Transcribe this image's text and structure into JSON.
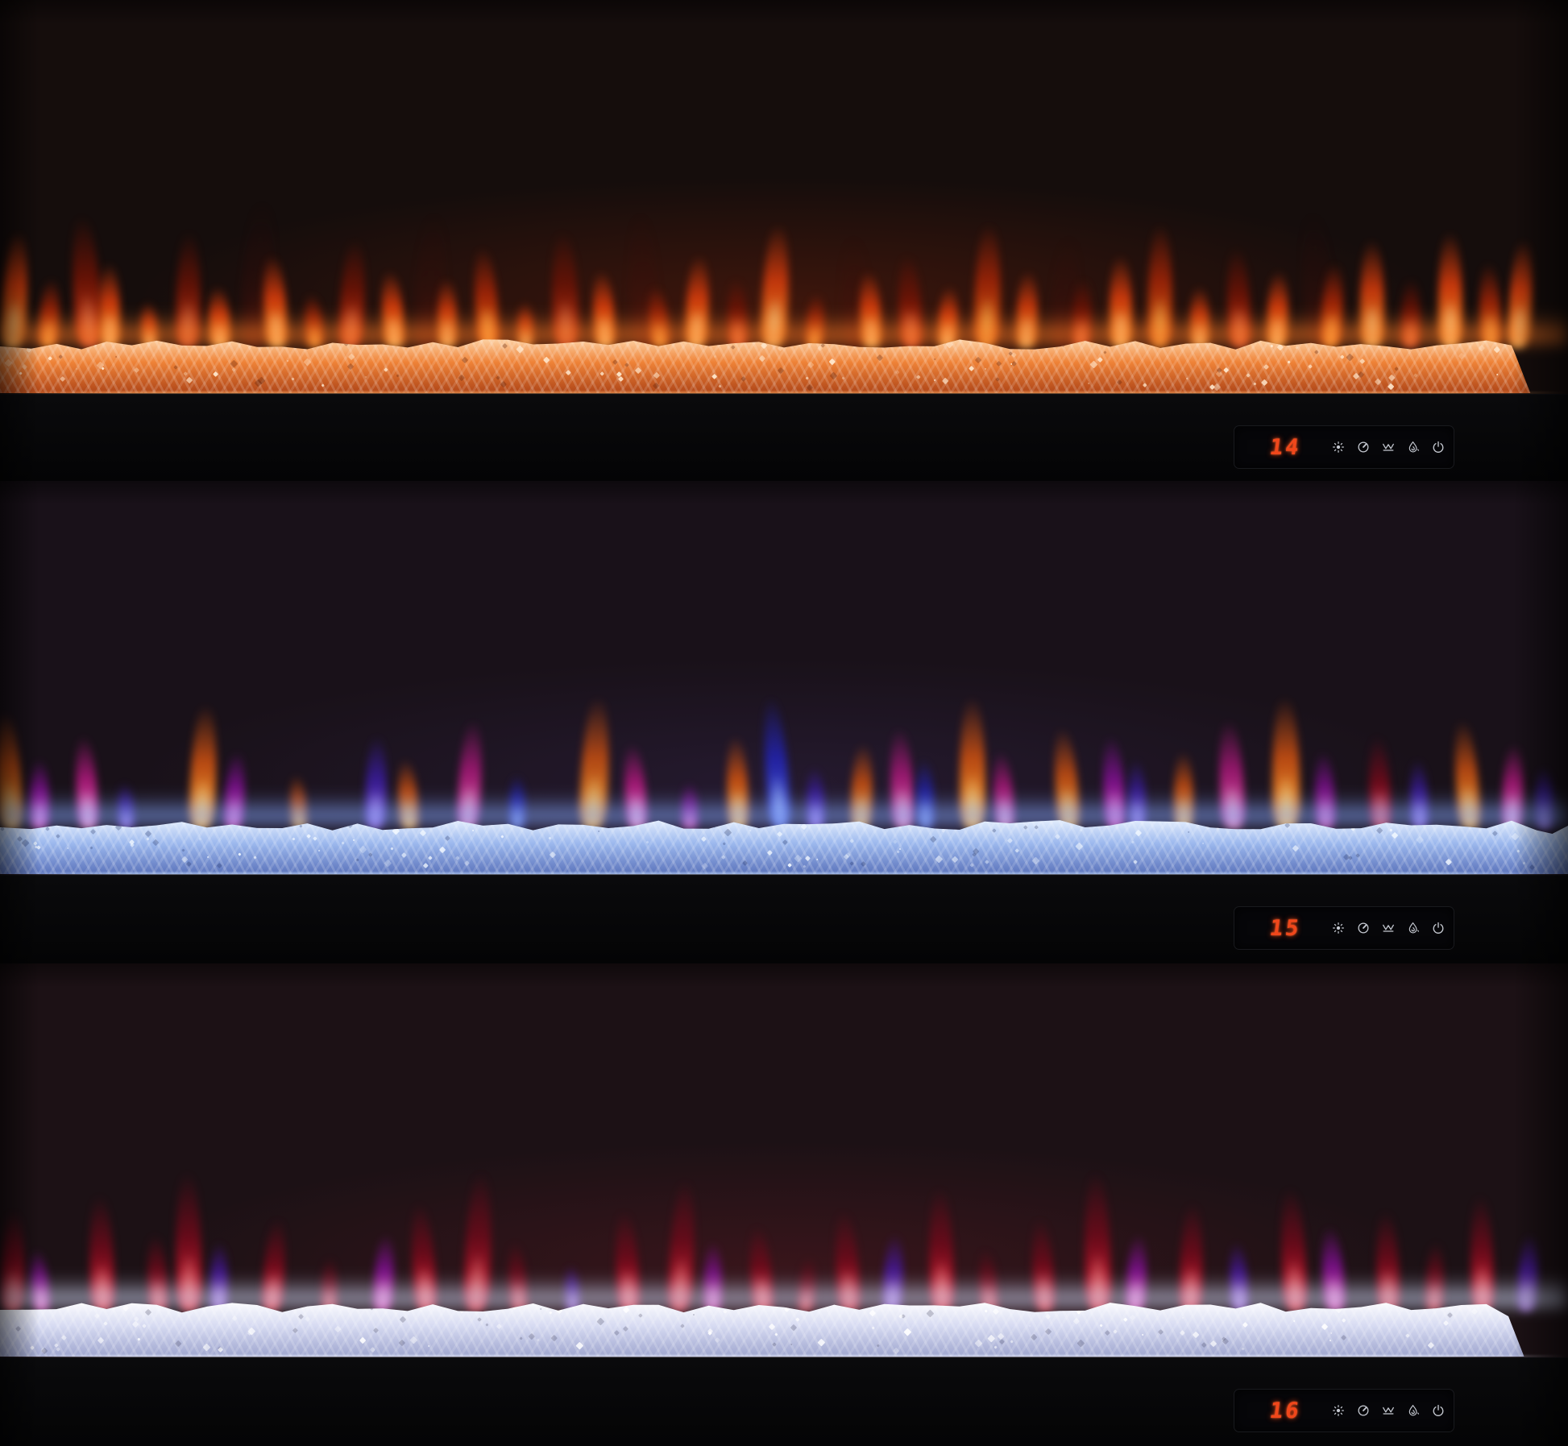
{
  "product": {
    "description": "wall-mounted linear electric fireplace shown in three flame/crystal color modes"
  },
  "panel": {
    "digit_color": "#f0471b",
    "icon_color": "#c6cad2",
    "icons": [
      {
        "name": "brightness-icon",
        "label": "flame brightness"
      },
      {
        "name": "timer-icon",
        "label": "timer"
      },
      {
        "name": "ember-bed-icon",
        "label": "ember bed color"
      },
      {
        "name": "flame-effect-icon",
        "label": "flame color"
      },
      {
        "name": "power-icon",
        "label": "power"
      }
    ]
  },
  "flame_colors": {
    "orange": [
      "#ffe49a",
      "#ff8c22",
      "#cf3a0c"
    ],
    "orangeDeep": [
      "#ffc658",
      "#f26310",
      "#9e2407"
    ],
    "red": [
      "#ff8a55",
      "#e63a12",
      "#701305"
    ],
    "smoke": [
      "rgba(140,30,12,0.35)",
      "rgba(100,18,10,0.45)",
      "rgba(70,10,8,0.25)"
    ],
    "amber": [
      "#ffdf86",
      "#ff9e2e",
      "#bf4c12"
    ],
    "pink": [
      "#ffd2ea",
      "#ff5cba",
      "#a81878"
    ],
    "magenta": [
      "#ff9de2",
      "#e934c2",
      "#7f1090"
    ],
    "purple": [
      "#c6a6ff",
      "#7a48e8",
      "#3a1c9e"
    ],
    "blue": [
      "#a6c4ff",
      "#4a5cec",
      "#2222aa"
    ],
    "crimson": [
      "#ff8585",
      "#e61a32",
      "#6d0a1a"
    ],
    "violet": [
      "#d4aaff",
      "#9148e2",
      "#4718a0"
    ]
  },
  "sections": [
    {
      "name": "orange-flame-orange-crystals",
      "display": "14",
      "bed_right_cut": 97.6,
      "seed": 7,
      "colors": {
        "bg": "#150d0c",
        "wall_glow": "rgba(120,35,12,0.40)",
        "bed_top": "#ffd9ae",
        "bed_mid": "#ef8338",
        "bed_deep": "#b04618",
        "glow": "#ff7a26",
        "spark": "#ffe9cf",
        "spark_dark": "rgba(90,30,8,0.40)",
        "edge": "rgba(255,180,110,0.55)"
      },
      "flames": [
        [
          1.0,
          150,
          30,
          "orange",
          0.95
        ],
        [
          3.2,
          90,
          24,
          "orangeDeep",
          0.9
        ],
        [
          5.5,
          170,
          34,
          "red",
          0.85
        ],
        [
          7.0,
          110,
          26,
          "orange",
          0.95
        ],
        [
          9.5,
          60,
          20,
          "orange",
          0.9
        ],
        [
          12.0,
          150,
          30,
          "red",
          0.8
        ],
        [
          14.0,
          80,
          26,
          "orange",
          0.95
        ],
        [
          16.5,
          190,
          40,
          "smoke",
          0.7
        ],
        [
          17.5,
          120,
          28,
          "orange",
          0.95
        ],
        [
          20.0,
          70,
          22,
          "orangeDeep",
          0.9
        ],
        [
          22.5,
          140,
          30,
          "red",
          0.85
        ],
        [
          25.0,
          100,
          26,
          "orange",
          0.95
        ],
        [
          27.5,
          175,
          38,
          "smoke",
          0.6
        ],
        [
          28.5,
          90,
          24,
          "orange",
          0.9
        ],
        [
          31.0,
          130,
          28,
          "orangeDeep",
          0.95
        ],
        [
          33.5,
          60,
          20,
          "orange",
          0.85
        ],
        [
          36.0,
          150,
          32,
          "red",
          0.8
        ],
        [
          38.5,
          100,
          26,
          "orange",
          0.95
        ],
        [
          41.0,
          175,
          36,
          "smoke",
          0.65
        ],
        [
          42.0,
          80,
          24,
          "orangeDeep",
          0.9
        ],
        [
          44.5,
          120,
          28,
          "orange",
          0.95
        ],
        [
          47.0,
          90,
          24,
          "red",
          0.85
        ],
        [
          49.5,
          160,
          32,
          "orange",
          0.9
        ],
        [
          52.0,
          70,
          22,
          "orangeDeep",
          0.9
        ],
        [
          54.5,
          145,
          34,
          "smoke",
          0.6
        ],
        [
          55.5,
          100,
          26,
          "orange",
          0.95
        ],
        [
          58.0,
          120,
          28,
          "red",
          0.85
        ],
        [
          60.5,
          80,
          24,
          "orange",
          0.95
        ],
        [
          63.0,
          160,
          32,
          "orangeDeep",
          0.9
        ],
        [
          65.5,
          100,
          26,
          "orange",
          0.9
        ],
        [
          68.0,
          145,
          34,
          "smoke",
          0.65
        ],
        [
          69.0,
          90,
          24,
          "red",
          0.85
        ],
        [
          71.5,
          120,
          28,
          "orange",
          0.95
        ],
        [
          74.0,
          160,
          30,
          "orangeDeep",
          0.9
        ],
        [
          76.5,
          80,
          24,
          "orange",
          0.9
        ],
        [
          79.0,
          130,
          28,
          "red",
          0.85
        ],
        [
          81.5,
          100,
          26,
          "orange",
          0.95
        ],
        [
          84.0,
          175,
          38,
          "smoke",
          0.6
        ],
        [
          85.0,
          110,
          26,
          "orangeDeep",
          0.95
        ],
        [
          87.5,
          140,
          30,
          "orange",
          0.9
        ],
        [
          90.0,
          90,
          24,
          "red",
          0.85
        ],
        [
          92.5,
          150,
          30,
          "orange",
          0.95
        ],
        [
          95.0,
          110,
          26,
          "orangeDeep",
          0.9
        ],
        [
          97.0,
          140,
          28,
          "orange",
          0.9
        ]
      ]
    },
    {
      "name": "multicolor-flame-blue-crystals",
      "display": "15",
      "bed_right_cut": 100,
      "seed": 19,
      "colors": {
        "bg": "#191119",
        "wall_glow": "rgba(70,50,110,0.25)",
        "bed_top": "#eaf3ff",
        "bed_mid": "#9db9ee",
        "bed_deep": "#5c74bc",
        "glow": "#86a8ff",
        "spark": "#f2f8ff",
        "spark_dark": "rgba(25,40,90,0.35)",
        "edge": "rgba(200,225,255,0.60)"
      },
      "flames": [
        [
          0.5,
          150,
          30,
          "amber",
          0.9
        ],
        [
          2.5,
          90,
          24,
          "magenta",
          0.85
        ],
        [
          5.5,
          120,
          26,
          "pink",
          0.9
        ],
        [
          8.0,
          60,
          20,
          "purple",
          0.8
        ],
        [
          13.0,
          160,
          32,
          "amber",
          0.95
        ],
        [
          15.0,
          100,
          24,
          "magenta",
          0.85
        ],
        [
          19.0,
          70,
          20,
          "amber",
          0.8
        ],
        [
          24.0,
          120,
          26,
          "purple",
          0.85
        ],
        [
          26.0,
          90,
          24,
          "amber",
          0.9
        ],
        [
          30.0,
          140,
          28,
          "pink",
          0.85
        ],
        [
          33.0,
          70,
          20,
          "blue",
          0.8
        ],
        [
          38.0,
          170,
          34,
          "amber",
          0.9
        ],
        [
          40.5,
          110,
          26,
          "pink",
          0.9
        ],
        [
          44.0,
          60,
          20,
          "magenta",
          0.8
        ],
        [
          47.0,
          120,
          26,
          "amber",
          0.95
        ],
        [
          49.5,
          170,
          28,
          "blue",
          0.9
        ],
        [
          52.0,
          80,
          22,
          "purple",
          0.85
        ],
        [
          55.0,
          110,
          26,
          "amber",
          0.9
        ],
        [
          57.5,
          130,
          28,
          "pink",
          0.85
        ],
        [
          59.0,
          90,
          22,
          "blue",
          0.8
        ],
        [
          62.0,
          170,
          32,
          "amber",
          0.95
        ],
        [
          64.0,
          100,
          24,
          "pink",
          0.85
        ],
        [
          68.0,
          130,
          28,
          "amber",
          0.9
        ],
        [
          71.0,
          120,
          26,
          "magenta",
          0.85
        ],
        [
          72.5,
          90,
          22,
          "purple",
          0.8
        ],
        [
          75.5,
          100,
          24,
          "amber",
          0.9
        ],
        [
          78.5,
          140,
          30,
          "pink",
          0.85
        ],
        [
          82.0,
          170,
          34,
          "amber",
          0.95
        ],
        [
          84.5,
          100,
          24,
          "magenta",
          0.8
        ],
        [
          88.0,
          120,
          26,
          "crimson",
          0.85
        ],
        [
          90.5,
          90,
          22,
          "purple",
          0.8
        ],
        [
          93.5,
          140,
          28,
          "amber",
          0.9
        ],
        [
          96.5,
          110,
          26,
          "pink",
          0.85
        ],
        [
          98.5,
          80,
          22,
          "purple",
          0.8
        ]
      ]
    },
    {
      "name": "red-flame-clear-crystals",
      "display": "16",
      "bed_right_cut": 97.2,
      "seed": 31,
      "colors": {
        "bg": "#1c1115",
        "wall_glow": "rgba(120,30,40,0.30)",
        "bed_top": "#ffffff",
        "bed_mid": "#d7dbf2",
        "bed_deep": "#9fa6cf",
        "glow": "#d6defc",
        "spark": "#ffffff",
        "spark_dark": "rgba(50,50,80,0.30)",
        "edge": "rgba(235,240,255,0.60)"
      },
      "flames": [
        [
          0.8,
          130,
          28,
          "crimson",
          0.9
        ],
        [
          2.5,
          80,
          22,
          "magenta",
          0.8
        ],
        [
          6.5,
          150,
          30,
          "crimson",
          0.9
        ],
        [
          10.0,
          100,
          24,
          "crimson",
          0.85
        ],
        [
          12.0,
          180,
          32,
          "crimson",
          0.9
        ],
        [
          14.0,
          90,
          22,
          "violet",
          0.8
        ],
        [
          17.5,
          120,
          26,
          "crimson",
          0.9
        ],
        [
          21.0,
          70,
          20,
          "crimson",
          0.8
        ],
        [
          24.5,
          100,
          24,
          "magenta",
          0.85
        ],
        [
          27.0,
          140,
          28,
          "crimson",
          0.9
        ],
        [
          30.5,
          180,
          32,
          "crimson",
          0.85
        ],
        [
          33.0,
          90,
          22,
          "crimson",
          0.8
        ],
        [
          36.5,
          60,
          18,
          "violet",
          0.75
        ],
        [
          40.0,
          130,
          28,
          "crimson",
          0.9
        ],
        [
          43.5,
          170,
          30,
          "crimson",
          0.85
        ],
        [
          45.5,
          90,
          22,
          "magenta",
          0.8
        ],
        [
          48.5,
          110,
          26,
          "crimson",
          0.9
        ],
        [
          51.5,
          70,
          20,
          "crimson",
          0.8
        ],
        [
          54.0,
          130,
          28,
          "crimson",
          0.85
        ],
        [
          57.0,
          100,
          24,
          "violet",
          0.8
        ],
        [
          60.0,
          160,
          30,
          "crimson",
          0.9
        ],
        [
          63.0,
          80,
          22,
          "crimson",
          0.8
        ],
        [
          66.5,
          120,
          26,
          "crimson",
          0.85
        ],
        [
          70.0,
          180,
          32,
          "crimson",
          0.9
        ],
        [
          72.5,
          100,
          24,
          "magenta",
          0.85
        ],
        [
          76.0,
          140,
          28,
          "crimson",
          0.9
        ],
        [
          79.0,
          90,
          22,
          "violet",
          0.8
        ],
        [
          82.5,
          160,
          30,
          "crimson",
          0.9
        ],
        [
          85.0,
          110,
          26,
          "magenta",
          0.85
        ],
        [
          88.5,
          130,
          28,
          "crimson",
          0.85
        ],
        [
          91.5,
          90,
          22,
          "crimson",
          0.8
        ],
        [
          94.5,
          150,
          28,
          "crimson",
          0.9
        ],
        [
          97.5,
          100,
          24,
          "violet",
          0.8
        ]
      ]
    }
  ]
}
